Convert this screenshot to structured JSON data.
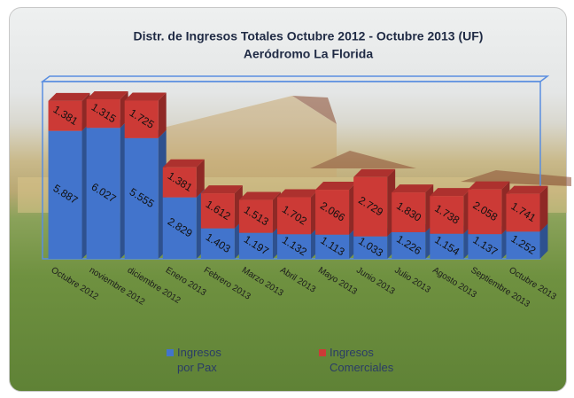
{
  "chart_data": {
    "type": "bar3d_stacked",
    "title": "Distr. de Ingresos Totales  Octubre 2012 - Octubre 2013  (UF)",
    "subtitle": "Aeródromo La Florida",
    "categories": [
      "Octubre 2012",
      "noviembre 2012",
      "diciembre 2012",
      "Enero 2013",
      "Febrero 2013",
      "Marzo 2013",
      "Abril 2013",
      "Mayo 2013",
      "Junio 2013",
      "Julio 2013",
      "Agosto 2013",
      "Septiembre 2013",
      "Octubre 2013"
    ],
    "series": [
      {
        "name": "Ingresos por Pax",
        "color": "#4274cc",
        "values": [
          5887,
          6027,
          5555,
          2829,
          1403,
          1197,
          1132,
          1113,
          1033,
          1226,
          1154,
          1137,
          1252
        ],
        "value_labels": [
          "5.887",
          "6.027",
          "5.555",
          "2.829",
          "1.403",
          "1.197",
          "1.132",
          "1.113",
          "1.033",
          "1.226",
          "1.154",
          "1.137",
          "1.252"
        ]
      },
      {
        "name": "Ingresos Comerciales",
        "color": "#cc3a36",
        "values": [
          1381,
          1315,
          1725,
          1381,
          1612,
          1513,
          1702,
          2066,
          2729,
          1830,
          1738,
          2058,
          1741
        ],
        "value_labels": [
          "1.381",
          "1.315",
          "1.725",
          "1.381",
          "1.612",
          "1.513",
          "1.702",
          "2.066",
          "2.729",
          "1.830",
          "1.738",
          "2.058",
          "1.741"
        ]
      }
    ]
  }
}
